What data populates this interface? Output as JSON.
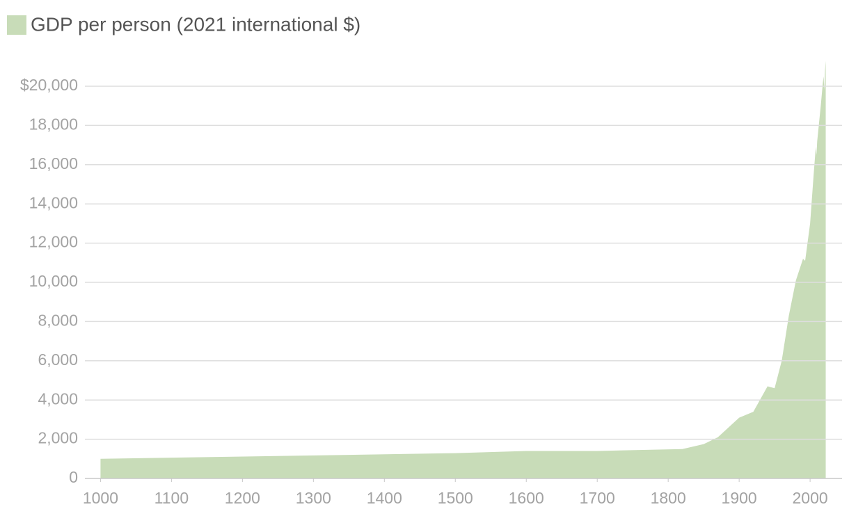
{
  "chart_data": {
    "type": "area",
    "series": [
      {
        "name": "GDP per person (2021 international $)",
        "color": "#c8dcb8",
        "x": [
          1000,
          1500,
          1600,
          1700,
          1820,
          1850,
          1870,
          1900,
          1920,
          1940,
          1950,
          1960,
          1970,
          1980,
          1990,
          1993,
          2000,
          2005,
          2008,
          2009,
          2010,
          2015,
          2018,
          2019,
          2020,
          2021,
          2022
        ],
        "values": [
          1000,
          1290,
          1400,
          1400,
          1500,
          1750,
          2100,
          3100,
          3400,
          4700,
          4600,
          6000,
          8300,
          10100,
          11200,
          11100,
          13000,
          15500,
          16900,
          16500,
          17200,
          19000,
          20200,
          20500,
          19800,
          20800,
          21300
        ]
      }
    ],
    "xlim": [
      978,
      2045
    ],
    "xticks": [
      1000,
      1100,
      1200,
      1300,
      1400,
      1500,
      1600,
      1700,
      1800,
      1900,
      2000
    ],
    "ylim": [
      0,
      22000
    ],
    "yticks": [
      0,
      {
        "value": 2000,
        "label": "2,000"
      },
      {
        "value": 4000,
        "label": "4,000"
      },
      {
        "value": 6000,
        "label": "6,000"
      },
      {
        "value": 8000,
        "label": "8,000"
      },
      {
        "value": 10000,
        "label": "10,000"
      },
      {
        "value": 12000,
        "label": "12,000"
      },
      {
        "value": 14000,
        "label": "14,000"
      },
      {
        "value": 16000,
        "label": "16,000"
      },
      {
        "value": 18000,
        "label": "18,000"
      },
      {
        "value": 20000,
        "label": "$20,000"
      }
    ],
    "grid": true
  }
}
